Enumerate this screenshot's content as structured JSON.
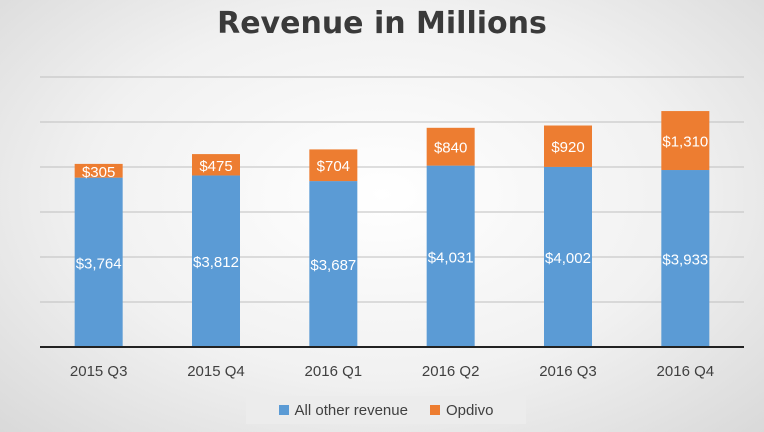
{
  "chart_data": {
    "type": "bar",
    "stacked": true,
    "title": "Revenue in Millions",
    "categories": [
      "2015 Q3",
      "2015 Q4",
      "2016 Q1",
      "2016 Q2",
      "2016 Q3",
      "2016 Q4"
    ],
    "series": [
      {
        "name": "All other revenue",
        "color": "#5b9bd5",
        "values": [
          3764,
          3812,
          3687,
          4031,
          4002,
          3933
        ],
        "labels": [
          "$3,764",
          "$3,812",
          "$3,687",
          "$4,031",
          "$4,002",
          "$3,933"
        ]
      },
      {
        "name": "Opdivo",
        "color": "#ed7d31",
        "values": [
          305,
          475,
          704,
          840,
          920,
          1310
        ],
        "labels": [
          "$305",
          "$475",
          "$704",
          "$840",
          "$920",
          "$1,310"
        ]
      }
    ],
    "ylim": [
      0,
      6000
    ],
    "grid": true,
    "legend_position": "bottom"
  }
}
